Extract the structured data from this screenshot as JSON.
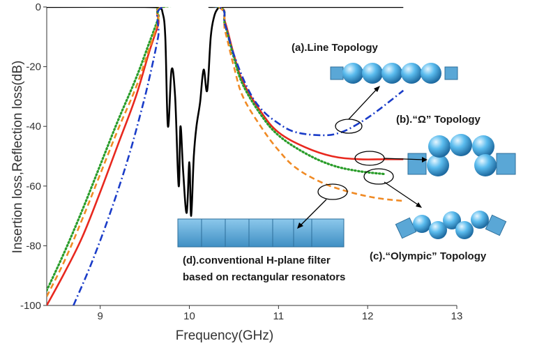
{
  "chart_data": {
    "type": "line",
    "title": "",
    "xlabel": "Frequency(GHz)",
    "ylabel": "Insertion loss,Reflection loss(dB)",
    "xlim": [
      8.4,
      13
    ],
    "ylim": [
      -100,
      0
    ],
    "xticks": [
      9,
      10,
      11,
      12,
      13
    ],
    "yticks": [
      0,
      -20,
      -40,
      -60,
      -80,
      -100
    ],
    "grid": false,
    "legend": "none",
    "series": [
      {
        "color": "#000000",
        "dash": "solid",
        "x": [
          8.4,
          9.5,
          9.66,
          9.7,
          9.73,
          9.76,
          9.8,
          9.84,
          9.88,
          9.9,
          9.93,
          9.97,
          10.0,
          10.02,
          10.05,
          10.08,
          10.12,
          10.16,
          10.2,
          10.24,
          10.28,
          10.32,
          10.34,
          10.4,
          12.4
        ],
        "y": [
          0,
          0,
          -0.5,
          -2,
          -10,
          -40,
          -21,
          -30,
          -60,
          -40,
          -55,
          -69,
          -52,
          -70,
          -50,
          -40,
          -32,
          -21,
          -28,
          -10,
          -3,
          -0.5,
          0,
          0,
          0
        ]
      },
      {
        "color": "#e8281e",
        "dash": "solid",
        "x": [
          8.4,
          8.6,
          8.8,
          9.0,
          9.2,
          9.4,
          9.55,
          9.65,
          9.7,
          10.32,
          10.4,
          10.5,
          10.6,
          10.8,
          11.0,
          11.3,
          11.6,
          11.9,
          12.2,
          12.4
        ],
        "y": [
          -100,
          -89,
          -77,
          -62,
          -46,
          -30,
          -15,
          -6,
          0,
          0,
          -5,
          -16,
          -25,
          -35,
          -42,
          -47,
          -50,
          -51,
          -51,
          -51
        ]
      },
      {
        "color": "#2a9d2a",
        "dash": "dotted",
        "x": [
          8.4,
          8.6,
          8.8,
          9.0,
          9.2,
          9.4,
          9.55,
          9.65,
          9.7,
          10.32,
          10.4,
          10.5,
          10.6,
          10.8,
          11.0,
          11.3,
          11.6,
          11.9,
          12.2
        ],
        "y": [
          -95,
          -82,
          -68,
          -53,
          -38,
          -24,
          -12,
          -4,
          0,
          0,
          -6,
          -17,
          -26,
          -36,
          -43,
          -49,
          -53,
          -55,
          -56
        ]
      },
      {
        "color": "#f08a24",
        "dash": "dashed",
        "x": [
          8.4,
          8.6,
          8.8,
          9.0,
          9.2,
          9.4,
          9.55,
          9.65,
          9.7,
          10.32,
          10.4,
          10.5,
          10.6,
          10.8,
          11.0,
          11.2,
          11.5,
          11.8,
          12.1,
          12.4
        ],
        "y": [
          -97,
          -85,
          -71,
          -56,
          -41,
          -27,
          -14,
          -5,
          0,
          0,
          -8,
          -20,
          -30,
          -40,
          -48,
          -54,
          -59,
          -62,
          -64,
          -65
        ]
      },
      {
        "color": "#1a3cc8",
        "dash": "dashdot",
        "x": [
          8.7,
          8.9,
          9.1,
          9.3,
          9.45,
          9.55,
          9.65,
          9.7,
          10.32,
          10.4,
          10.5,
          10.65,
          10.8,
          11.0,
          11.2,
          11.5,
          11.7,
          11.9,
          12.1,
          12.4
        ],
        "y": [
          -100,
          -86,
          -70,
          -52,
          -36,
          -24,
          -10,
          0,
          0,
          -6,
          -16,
          -27,
          -34,
          -39,
          -42,
          -43,
          -42,
          -39,
          -35,
          -28
        ]
      }
    ],
    "annotations": [
      {
        "text": "(a).Line Topology"
      },
      {
        "text": "(b).“Ω” Topology"
      },
      {
        "text": "(c).“Olympic” Topology"
      },
      {
        "text": "(d).conventional H-plane filter"
      },
      {
        "text": "based on rectangular resonators"
      }
    ]
  },
  "colors": {
    "sphere": "#4db0e6",
    "block": "#5aa7d6",
    "axis": "#333333"
  }
}
